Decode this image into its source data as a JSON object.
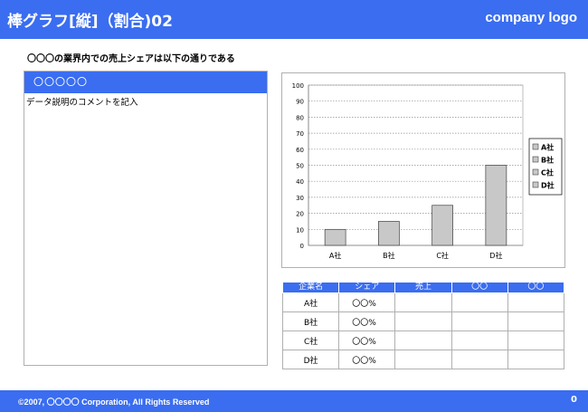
{
  "header": {
    "title": "棒グラフ[縦]（割合)02",
    "logo": "company logo"
  },
  "subtitle": "〇〇〇の業界内での売上シェアは以下の通りである",
  "left_panel": {
    "heading": "〇〇〇〇〇",
    "body": "データ説明のコメントを記入"
  },
  "chart_data": {
    "type": "bar",
    "categories": [
      "A社",
      "B社",
      "C社",
      "D社"
    ],
    "values": [
      10,
      15,
      25,
      50
    ],
    "ylim": [
      0,
      100
    ],
    "yticks": [
      0,
      10,
      20,
      30,
      40,
      50,
      60,
      70,
      80,
      90,
      100
    ],
    "legend": [
      "A社",
      "B社",
      "C社",
      "D社"
    ],
    "legend_position": "right",
    "grid": true,
    "bar_color": "#c8c8c8",
    "title": "",
    "xlabel": "",
    "ylabel": ""
  },
  "table": {
    "headers": [
      "企業名",
      "シェア",
      "売上",
      "〇〇",
      "〇〇"
    ],
    "rows": [
      [
        "A社",
        "〇〇%",
        "",
        "",
        ""
      ],
      [
        "B社",
        "〇〇%",
        "",
        "",
        ""
      ],
      [
        "C社",
        "〇〇%",
        "",
        "",
        ""
      ],
      [
        "D社",
        "〇〇%",
        "",
        "",
        ""
      ]
    ]
  },
  "footer": {
    "copyright": "©2007, 〇〇〇〇 Corporation, All Rights Reserved",
    "page": "0"
  },
  "colors": {
    "accent": "#3a6df0"
  }
}
